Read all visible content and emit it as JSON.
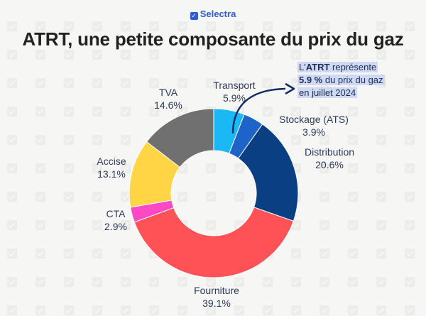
{
  "brand": {
    "name": "Selectra",
    "icon": "check-icon"
  },
  "title": "ATRT, une petite composante du prix du gaz",
  "callout": {
    "line1_prefix": "L'",
    "line1_bold": "ATRT",
    "line1_suffix": " représente",
    "line2_bold": "5.9 %",
    "line2_suffix": " du prix du gaz",
    "line3": "en juillet 2024"
  },
  "chart_data": {
    "type": "pie",
    "title": "ATRT, une petite composante du prix du gaz",
    "donut": true,
    "slices": [
      {
        "label": "Transport",
        "value_label": "5.9%",
        "value": 5.9,
        "color": "#1ab8f5"
      },
      {
        "label": "Stockage (ATS)",
        "value_label": "3.9%",
        "value": 3.9,
        "color": "#1e63c9"
      },
      {
        "label": "Distribution",
        "value_label": "20.6%",
        "value": 20.6,
        "color": "#0b3f84"
      },
      {
        "label": "Fourniture",
        "value_label": "39.1%",
        "value": 39.1,
        "color": "#ff5257"
      },
      {
        "label": "CTA",
        "value_label": "2.9%",
        "value": 2.9,
        "color": "#ff48c6"
      },
      {
        "label": "Accise",
        "value_label": "13.1%",
        "value": 13.1,
        "color": "#ffd445"
      },
      {
        "label": "TVA",
        "value_label": "14.6%",
        "value": 14.6,
        "color": "#707070"
      }
    ]
  }
}
